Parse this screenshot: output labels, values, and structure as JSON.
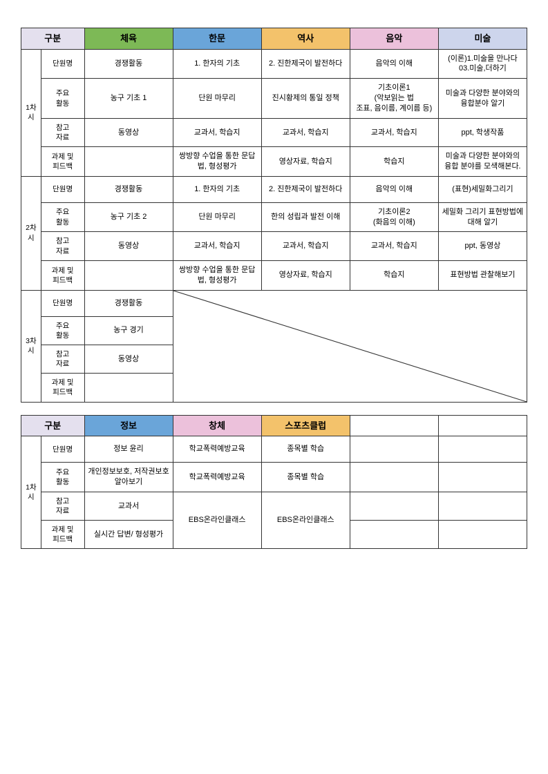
{
  "table1": {
    "header": {
      "gubun": "구분",
      "subjects": [
        "체육",
        "한문",
        "역사",
        "음악",
        "미술"
      ],
      "subject_colors": [
        "#7db956",
        "#6aa5d9",
        "#f3c26b",
        "#ecc1db",
        "#cdd5ec"
      ]
    },
    "row_sublabels": [
      "단원명",
      "주요\n활동",
      "참고\n자료",
      "과제 및\n피드백"
    ],
    "sessions": [
      {
        "label": "1차시",
        "rows": [
          [
            "경쟁활동",
            "1. 한자의 기초",
            "2. 진한제국이 발전하다",
            "음악의 이해",
            "(이론)1.미술을 만나다\n03.미술,더하기"
          ],
          [
            "농구 기초 1",
            "단원 마무리",
            "진시황제의 통일 정책",
            "기초이론1\n(악보읽는 법\n조표, 음이름, 계이름 등)",
            "미술과 다양한 분야와의 융합분야 알기"
          ],
          [
            "동영상",
            "교과서, 학습지",
            "교과서, 학습지",
            "교과서, 학습지",
            "ppt, 학생작품"
          ],
          [
            "",
            "쌍방향 수업을 통한 문답법, 형성평가",
            "영상자료, 학습지",
            "학습지",
            "미술과 다양한 분야와의 융합 분야를 모색해본다."
          ]
        ]
      },
      {
        "label": "2차시",
        "rows": [
          [
            "경쟁활동",
            "1. 한자의 기초",
            "2. 진한제국이 발전하다",
            "음악의 이해",
            "(표현)세밀화그리기"
          ],
          [
            "농구 기초 2",
            "단원 마무리",
            "한의 성립과 발전 이해",
            "기초이론2\n(화음의 이해)",
            "세밀화 그리기 표현방법에 대해 알기"
          ],
          [
            "동영상",
            "교과서, 학습지",
            "교과서, 학습지",
            "교과서, 학습지",
            "ppt, 동영상"
          ],
          [
            "",
            "쌍방향 수업을 통한 문답법, 형성평가",
            "영상자료, 학습지",
            "학습지",
            "표현방법 관찰해보기"
          ]
        ]
      },
      {
        "label": "3차시",
        "rows": [
          [
            "경쟁활동"
          ],
          [
            "농구 경기"
          ],
          [
            "동영상"
          ],
          [
            ""
          ]
        ],
        "diagonal": true
      }
    ]
  },
  "table2": {
    "header": {
      "gubun": "구분",
      "subjects": [
        "정보",
        "창체",
        "스포츠클럽",
        "",
        ""
      ],
      "subject_colors": [
        "#6aa5d9",
        "#ecc1db",
        "#f3c26b",
        "#ffffff",
        "#ffffff"
      ]
    },
    "row_sublabels": [
      "단원명",
      "주요\n활동",
      "참고\n자료",
      "과제 및\n피드백"
    ],
    "sessions": [
      {
        "label": "1차시",
        "rows": [
          [
            "정보 윤리",
            "학교폭력예방교육",
            "종목별 학습",
            "",
            ""
          ],
          [
            "개인정보보호, 저작권보호 알아보기",
            "학교폭력예방교육",
            "종목별 학습",
            "",
            ""
          ],
          [
            "교과서",
            "__merge__",
            "__merge__",
            "",
            ""
          ],
          [
            "실시간 답변/ 형성평가",
            "EBS온라인클래스",
            "EBS온라인클래스",
            "",
            ""
          ]
        ],
        "merges": [
          {
            "subject_idx": 1,
            "row_start": 2,
            "row_span": 2,
            "text": "EBS온라인클래스"
          },
          {
            "subject_idx": 2,
            "row_start": 2,
            "row_span": 2,
            "text": "EBS온라인클래스"
          }
        ]
      }
    ]
  }
}
